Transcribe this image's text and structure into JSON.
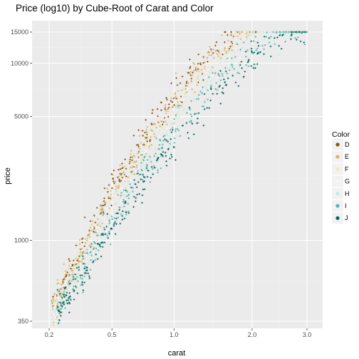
{
  "chart_data": {
    "type": "scatter",
    "title": "Price (log10) by Cube-Root of Carat and Color",
    "xlabel": "carat",
    "ylabel": "price",
    "x_scale": "cube-root",
    "y_scale": "log10",
    "xlim": [
      0.2,
      3.0
    ],
    "ylim": [
      350,
      15000
    ],
    "x_ticks": [
      {
        "value": 0.2,
        "label": "0.2"
      },
      {
        "value": 0.5,
        "label": "0.5"
      },
      {
        "value": 1.0,
        "label": "1.0"
      },
      {
        "value": 2.0,
        "label": "2.0"
      },
      {
        "value": 3.0,
        "label": "3.0"
      }
    ],
    "y_ticks": [
      {
        "value": 350,
        "label": "350"
      },
      {
        "value": 1000,
        "label": "1000"
      },
      {
        "value": 5000,
        "label": "5000"
      },
      {
        "value": 10000,
        "label": "10000"
      },
      {
        "value": 15000,
        "label": "15000"
      }
    ],
    "grid": true,
    "legend": {
      "title": "Color",
      "position": "right",
      "entries": [
        {
          "label": "D",
          "color": "#8c510a"
        },
        {
          "label": "E",
          "color": "#d8b365"
        },
        {
          "label": "F",
          "color": "#f6e8c3"
        },
        {
          "label": "G",
          "color": "#f5f5f5"
        },
        {
          "label": "H",
          "color": "#c7eae5"
        },
        {
          "label": "I",
          "color": "#5ab4ac"
        },
        {
          "label": "J",
          "color": "#01665e"
        }
      ]
    },
    "series": [
      {
        "name": "D",
        "color": "#8c510a",
        "trend": [
          [
            0.2,
            380
          ],
          [
            0.3,
            750
          ],
          [
            0.5,
            1900
          ],
          [
            0.7,
            3400
          ],
          [
            1.0,
            6500
          ],
          [
            1.5,
            13000
          ],
          [
            2.0,
            17500
          ]
        ],
        "x_range": [
          0.21,
          2.1
        ]
      },
      {
        "name": "E",
        "color": "#d8b365",
        "trend": [
          [
            0.2,
            370
          ],
          [
            0.3,
            720
          ],
          [
            0.5,
            1800
          ],
          [
            0.7,
            3200
          ],
          [
            1.0,
            6000
          ],
          [
            1.5,
            12000
          ],
          [
            2.0,
            16500
          ]
        ],
        "x_range": [
          0.21,
          2.1
        ]
      },
      {
        "name": "F",
        "color": "#f6e8c3",
        "trend": [
          [
            0.2,
            360
          ],
          [
            0.3,
            700
          ],
          [
            0.5,
            1700
          ],
          [
            0.7,
            3000
          ],
          [
            1.0,
            5600
          ],
          [
            1.5,
            11000
          ],
          [
            2.0,
            15500
          ]
        ],
        "x_range": [
          0.21,
          2.2
        ]
      },
      {
        "name": "G",
        "color": "#f5f5f5",
        "trend": [
          [
            0.2,
            350
          ],
          [
            0.3,
            680
          ],
          [
            0.5,
            1600
          ],
          [
            0.7,
            2850
          ],
          [
            1.0,
            5300
          ],
          [
            1.5,
            10500
          ],
          [
            2.0,
            14500
          ]
        ],
        "x_range": [
          0.21,
          2.4
        ]
      },
      {
        "name": "H",
        "color": "#c7eae5",
        "trend": [
          [
            0.2,
            340
          ],
          [
            0.3,
            620
          ],
          [
            0.5,
            1450
          ],
          [
            0.7,
            2600
          ],
          [
            1.0,
            4600
          ],
          [
            1.5,
            9000
          ],
          [
            2.0,
            13000
          ],
          [
            2.5,
            16000
          ]
        ],
        "x_range": [
          0.21,
          2.6
        ]
      },
      {
        "name": "I",
        "color": "#5ab4ac",
        "trend": [
          [
            0.2,
            330
          ],
          [
            0.3,
            580
          ],
          [
            0.5,
            1300
          ],
          [
            0.7,
            2350
          ],
          [
            1.0,
            4100
          ],
          [
            1.5,
            8000
          ],
          [
            2.0,
            12000
          ],
          [
            2.5,
            15000
          ],
          [
            3.0,
            17000
          ]
        ],
        "x_range": [
          0.23,
          3.0
        ]
      },
      {
        "name": "J",
        "color": "#01665e",
        "trend": [
          [
            0.2,
            320
          ],
          [
            0.3,
            540
          ],
          [
            0.5,
            1200
          ],
          [
            0.7,
            2100
          ],
          [
            1.0,
            3600
          ],
          [
            1.5,
            7000
          ],
          [
            2.0,
            10500
          ],
          [
            2.5,
            14000
          ],
          [
            3.0,
            16500
          ]
        ],
        "x_range": [
          0.23,
          3.0
        ]
      }
    ]
  },
  "colors": {
    "panel_background": "#ebebeb",
    "grid_major": "#ffffff",
    "grid_minor": "#f2f2f2"
  }
}
